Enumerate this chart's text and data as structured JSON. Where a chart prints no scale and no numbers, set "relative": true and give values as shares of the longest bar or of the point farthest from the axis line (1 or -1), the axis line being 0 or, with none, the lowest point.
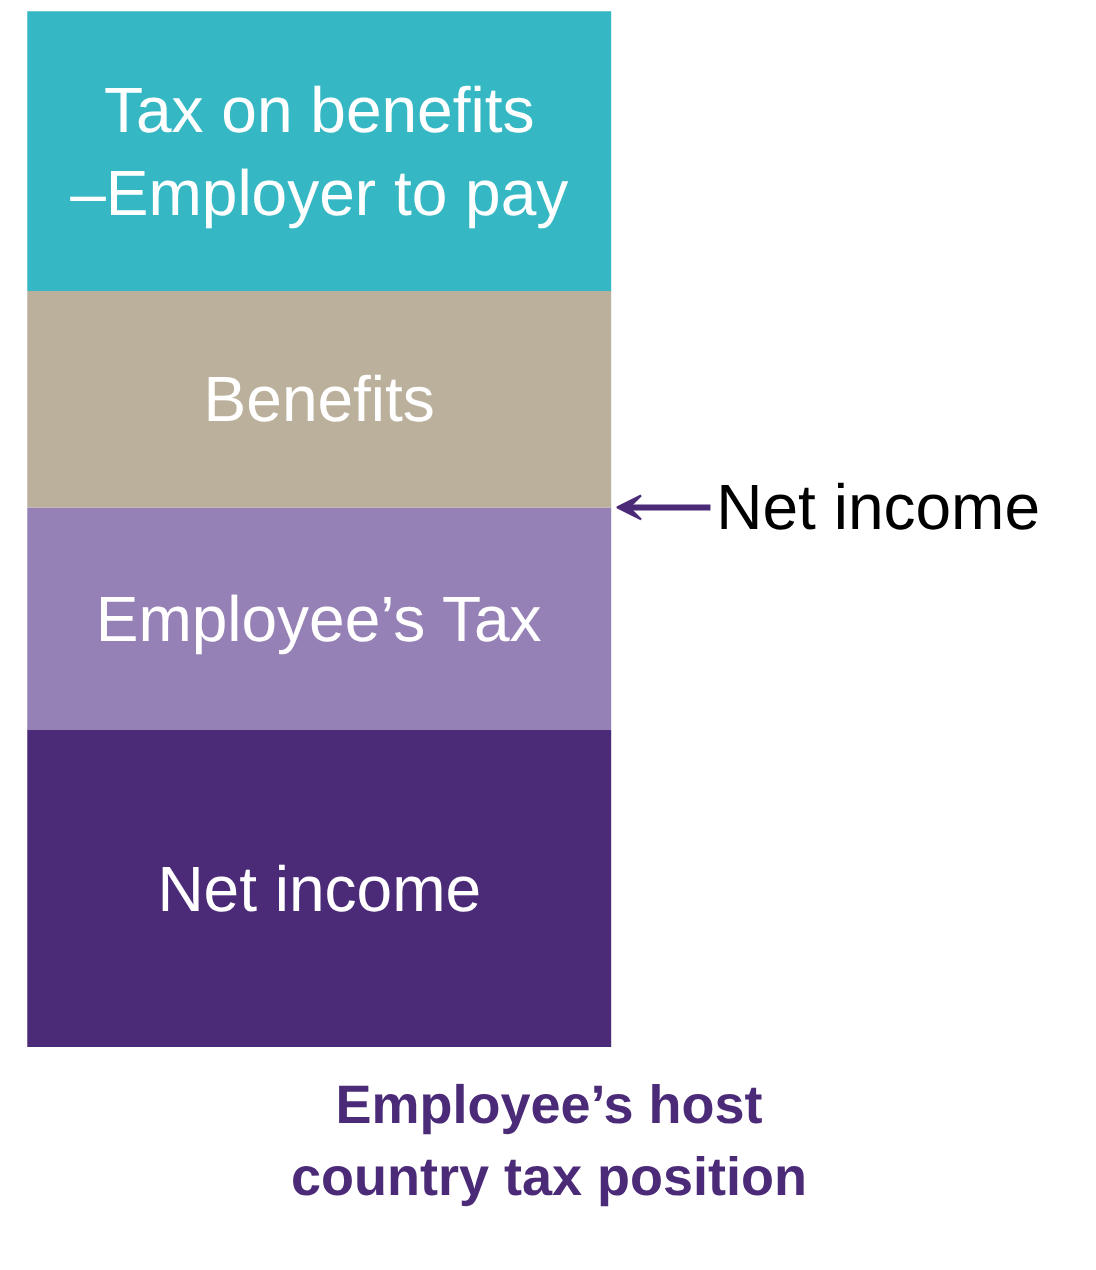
{
  "chart_data": {
    "type": "bar",
    "stacked": true,
    "relative": true,
    "categories": [
      null
    ],
    "xlabel": "Employee’s host country tax position",
    "series": [
      {
        "name": "Net income",
        "color": "#4b2a78",
        "values": [
          0.306
        ]
      },
      {
        "name": "Employee’s Tax",
        "color": "#9581b5",
        "values": [
          0.215
        ]
      },
      {
        "name": "Benefits",
        "color": "#bbb09c",
        "values": [
          0.209
        ]
      },
      {
        "name": "Tax on benefits –Employer to pay",
        "color": "#35b8c4",
        "values": [
          0.27
        ]
      }
    ],
    "annotations": [
      "Net income"
    ],
    "grid": false
  }
}
